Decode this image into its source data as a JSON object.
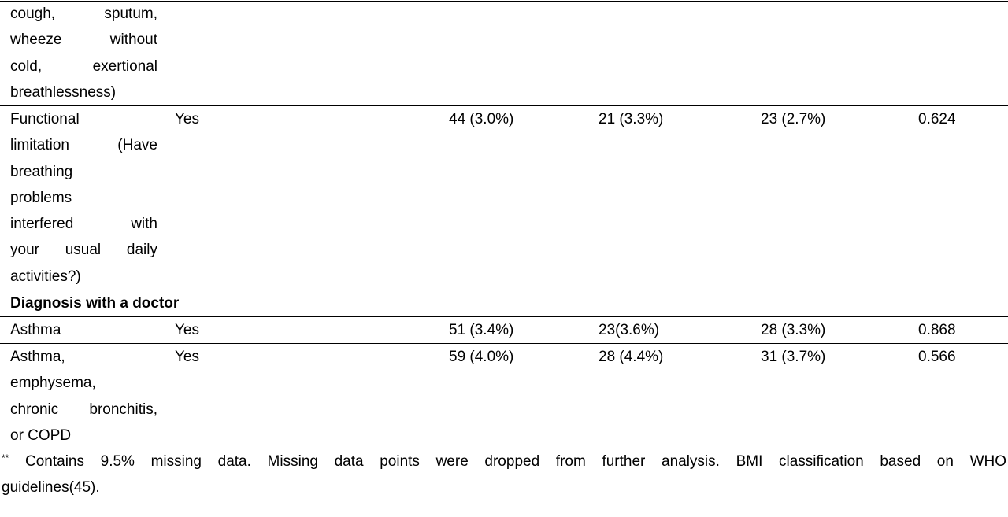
{
  "table": {
    "rows": [
      {
        "label_lines": [
          "cough, sputum,",
          "wheeze without",
          "cold, exertional",
          "breathlessness)"
        ],
        "response": "",
        "total": "",
        "group1": "",
        "group2": "",
        "p_value": ""
      },
      {
        "label_lines": [
          "Functional",
          "limitation (Have",
          "breathing",
          "problems",
          "interfered with",
          "your usual daily",
          "activities?)"
        ],
        "response": "Yes",
        "total": "44 (3.0%)",
        "group1": "21 (3.3%)",
        "group2": "23 (2.7%)",
        "p_value": "0.624"
      }
    ],
    "section_heading": "Diagnosis with a doctor",
    "section_rows": [
      {
        "label_lines": [
          "Asthma"
        ],
        "response": "Yes",
        "total": "51 (3.4%)",
        "group1": "23(3.6%)",
        "group2": "28 (3.3%)",
        "p_value": "0.868"
      },
      {
        "label_lines": [
          "Asthma,",
          "emphysema,",
          "chronic bronchitis,",
          "or COPD"
        ],
        "response": "Yes",
        "total": "59 (4.0%)",
        "group1": "28 (4.4%)",
        "group2": "31 (3.7%)",
        "p_value": "0.566"
      }
    ]
  },
  "footnote": {
    "marker": "**",
    "line1": "Contains 9.5% missing data. Missing data points were dropped from further analysis. BMI classification based on WHO",
    "line2": "guidelines(45)."
  }
}
